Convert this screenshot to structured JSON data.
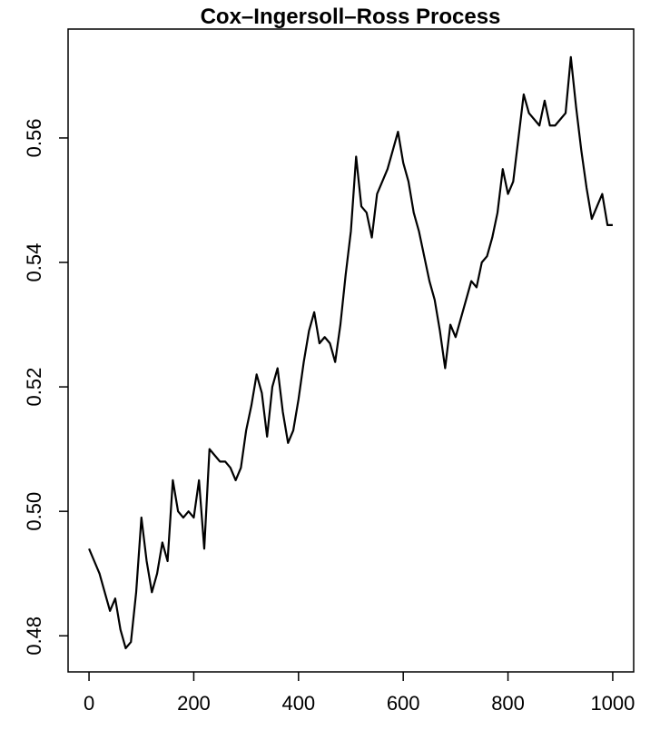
{
  "chart_data": {
    "type": "line",
    "title": "Cox–Ingersoll–Ross Process",
    "x": [
      0,
      10,
      20,
      30,
      40,
      50,
      60,
      70,
      80,
      90,
      100,
      110,
      120,
      130,
      140,
      150,
      160,
      170,
      180,
      190,
      200,
      210,
      220,
      230,
      240,
      250,
      260,
      270,
      280,
      290,
      300,
      310,
      320,
      330,
      340,
      350,
      360,
      370,
      380,
      390,
      400,
      410,
      420,
      430,
      440,
      450,
      460,
      470,
      480,
      490,
      500,
      510,
      520,
      530,
      540,
      550,
      560,
      570,
      580,
      590,
      600,
      610,
      620,
      630,
      640,
      650,
      660,
      670,
      680,
      690,
      700,
      710,
      720,
      730,
      740,
      750,
      760,
      770,
      780,
      790,
      800,
      810,
      820,
      830,
      840,
      850,
      860,
      870,
      880,
      890,
      900,
      910,
      920,
      930,
      940,
      950,
      960,
      970,
      980,
      990,
      1000
    ],
    "series": [
      {
        "color": "#000000",
        "values": [
          0.494,
          0.492,
          0.49,
          0.487,
          0.484,
          0.486,
          0.481,
          0.478,
          0.479,
          0.487,
          0.499,
          0.492,
          0.487,
          0.49,
          0.495,
          0.492,
          0.505,
          0.5,
          0.499,
          0.5,
          0.499,
          0.505,
          0.494,
          0.51,
          0.509,
          0.508,
          0.508,
          0.507,
          0.505,
          0.507,
          0.513,
          0.517,
          0.522,
          0.519,
          0.512,
          0.52,
          0.523,
          0.516,
          0.511,
          0.513,
          0.518,
          0.524,
          0.529,
          0.532,
          0.527,
          0.528,
          0.527,
          0.524,
          0.53,
          0.538,
          0.545,
          0.557,
          0.549,
          0.548,
          0.544,
          0.551,
          0.553,
          0.555,
          0.558,
          0.561,
          0.556,
          0.553,
          0.548,
          0.545,
          0.541,
          0.537,
          0.534,
          0.529,
          0.523,
          0.53,
          0.528,
          0.531,
          0.534,
          0.537,
          0.536,
          0.54,
          0.541,
          0.544,
          0.548,
          0.555,
          0.551,
          0.553,
          0.56,
          0.567,
          0.564,
          0.563,
          0.562,
          0.566,
          0.562,
          0.562,
          0.563,
          0.564,
          0.573,
          0.565,
          0.558,
          0.552,
          0.547,
          0.549,
          0.551,
          0.546,
          0.546
        ]
      }
    ],
    "xlim": [
      -40,
      1040
    ],
    "xticks": [
      0,
      200,
      400,
      600,
      800,
      1000
    ],
    "ylim": [
      0.4742,
      0.5775
    ],
    "yticks": [
      0.48,
      {
        "value": 0.5,
        "label": "0.50"
      },
      0.52,
      0.54,
      0.56
    ]
  }
}
